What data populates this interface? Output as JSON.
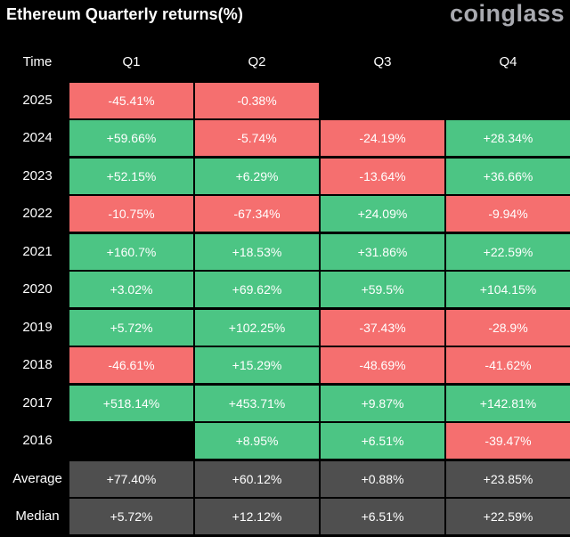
{
  "header": {
    "title": "Ethereum Quarterly returns(%)",
    "brand": "coinglass"
  },
  "colors": {
    "positive": "#4cc584",
    "negative": "#f56f6f",
    "summary": "#4f4f4f",
    "background": "#000000"
  },
  "chart_data": {
    "type": "table",
    "title": "Ethereum Quarterly returns(%)",
    "columns": [
      "Time",
      "Q1",
      "Q2",
      "Q3",
      "Q4"
    ],
    "rows": [
      {
        "label": "2025",
        "values": [
          "-45.41%",
          "-0.38%",
          "",
          ""
        ]
      },
      {
        "label": "2024",
        "values": [
          "+59.66%",
          "-5.74%",
          "-24.19%",
          "+28.34%"
        ]
      },
      {
        "label": "2023",
        "values": [
          "+52.15%",
          "+6.29%",
          "-13.64%",
          "+36.66%"
        ]
      },
      {
        "label": "2022",
        "values": [
          "-10.75%",
          "-67.34%",
          "+24.09%",
          "-9.94%"
        ]
      },
      {
        "label": "2021",
        "values": [
          "+160.7%",
          "+18.53%",
          "+31.86%",
          "+22.59%"
        ]
      },
      {
        "label": "2020",
        "values": [
          "+3.02%",
          "+69.62%",
          "+59.5%",
          "+104.15%"
        ]
      },
      {
        "label": "2019",
        "values": [
          "+5.72%",
          "+102.25%",
          "-37.43%",
          "-28.9%"
        ]
      },
      {
        "label": "2018",
        "values": [
          "-46.61%",
          "+15.29%",
          "-48.69%",
          "-41.62%"
        ]
      },
      {
        "label": "2017",
        "values": [
          "+518.14%",
          "+453.71%",
          "+9.87%",
          "+142.81%"
        ]
      },
      {
        "label": "2016",
        "values": [
          "",
          "+8.95%",
          "+6.51%",
          "-39.47%"
        ]
      }
    ],
    "summary_rows": [
      {
        "label": "Average",
        "values": [
          "+77.40%",
          "+60.12%",
          "+0.88%",
          "+23.85%"
        ]
      },
      {
        "label": "Median",
        "values": [
          "+5.72%",
          "+12.12%",
          "+6.51%",
          "+22.59%"
        ]
      }
    ]
  }
}
